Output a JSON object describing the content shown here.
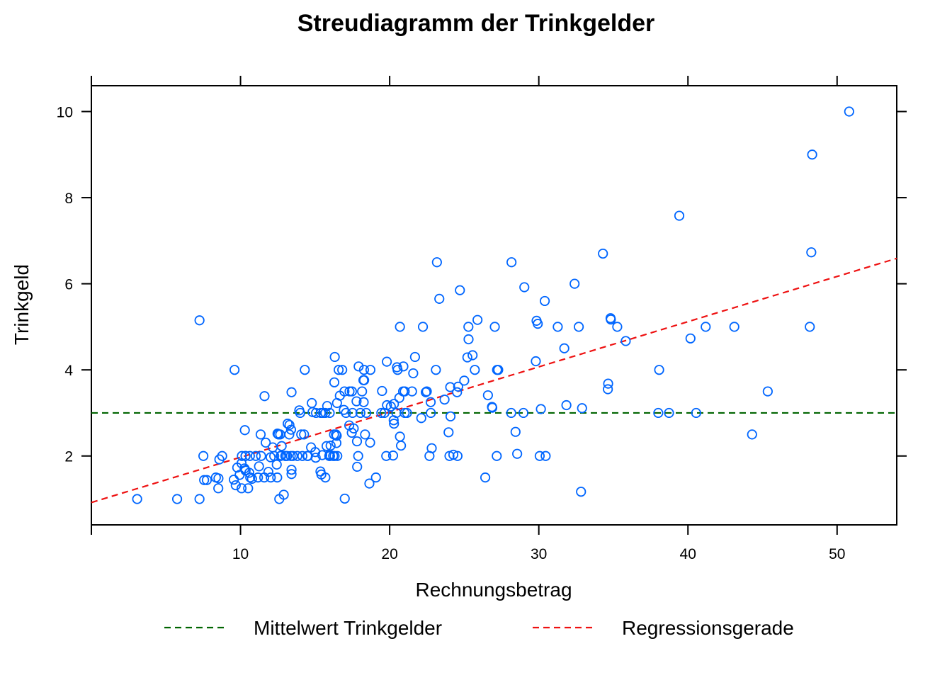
{
  "chart_data": {
    "type": "scatter",
    "title": "Streudiagramm der Trinkgelder",
    "xlabel": "Rechnungsbetrag",
    "ylabel": "Trinkgeld",
    "xlim": [
      0,
      54
    ],
    "ylim": [
      0.4,
      10.6
    ],
    "xticks": [
      10,
      20,
      30,
      40,
      50
    ],
    "yticks": [
      2,
      4,
      6,
      8,
      10
    ],
    "grid": false,
    "legend_position": "bottom",
    "point_color": "#0066ff",
    "series": [
      {
        "points": [
          [
            3.07,
            1.0
          ],
          [
            5.75,
            1.0
          ],
          [
            7.25,
            1.0
          ],
          [
            7.25,
            5.15
          ],
          [
            7.51,
            2.0
          ],
          [
            7.56,
            1.44
          ],
          [
            7.74,
            1.44
          ],
          [
            8.35,
            1.5
          ],
          [
            8.51,
            1.25
          ],
          [
            8.52,
            1.48
          ],
          [
            8.58,
            1.92
          ],
          [
            8.77,
            2.0
          ],
          [
            9.55,
            1.45
          ],
          [
            9.6,
            4.0
          ],
          [
            9.68,
            1.32
          ],
          [
            9.78,
            1.73
          ],
          [
            9.94,
            1.56
          ],
          [
            10.07,
            1.83
          ],
          [
            10.07,
            1.25
          ],
          [
            10.09,
            2.0
          ],
          [
            10.27,
            1.71
          ],
          [
            10.29,
            2.6
          ],
          [
            10.33,
            2.0
          ],
          [
            10.33,
            1.67
          ],
          [
            10.34,
            1.66
          ],
          [
            10.34,
            2.0
          ],
          [
            10.51,
            1.25
          ],
          [
            10.59,
            1.61
          ],
          [
            10.63,
            2.0
          ],
          [
            10.65,
            1.5
          ],
          [
            10.77,
            1.47
          ],
          [
            11.02,
            2.0
          ],
          [
            11.17,
            1.5
          ],
          [
            11.24,
            1.76
          ],
          [
            11.35,
            2.5
          ],
          [
            11.38,
            2.0
          ],
          [
            11.59,
            1.5
          ],
          [
            11.61,
            3.39
          ],
          [
            11.69,
            2.31
          ],
          [
            11.87,
            1.63
          ],
          [
            12.02,
            1.97
          ],
          [
            12.03,
            1.5
          ],
          [
            12.16,
            2.2
          ],
          [
            12.26,
            2.0
          ],
          [
            12.43,
            1.8
          ],
          [
            12.46,
            1.5
          ],
          [
            12.48,
            2.52
          ],
          [
            12.54,
            2.5
          ],
          [
            12.6,
            1.0
          ],
          [
            12.66,
            2.5
          ],
          [
            12.69,
            2.0
          ],
          [
            12.74,
            2.01
          ],
          [
            12.76,
            2.23
          ],
          [
            12.9,
            1.1
          ],
          [
            13.0,
            2.0
          ],
          [
            13.03,
            2.0
          ],
          [
            13.13,
            2.0
          ],
          [
            13.16,
            2.75
          ],
          [
            13.27,
            2.5
          ],
          [
            13.28,
            2.72
          ],
          [
            13.37,
            2.0
          ],
          [
            13.39,
            2.61
          ],
          [
            13.42,
            3.48
          ],
          [
            13.42,
            1.58
          ],
          [
            13.42,
            1.68
          ],
          [
            13.51,
            2.0
          ],
          [
            13.81,
            2.0
          ],
          [
            13.94,
            3.06
          ],
          [
            14.0,
            3.0
          ],
          [
            14.07,
            2.5
          ],
          [
            14.15,
            2.0
          ],
          [
            14.26,
            2.5
          ],
          [
            14.31,
            4.0
          ],
          [
            14.48,
            2.0
          ],
          [
            14.52,
            2.0
          ],
          [
            14.73,
            2.2
          ],
          [
            14.78,
            3.23
          ],
          [
            14.83,
            3.02
          ],
          [
            15.01,
            2.09
          ],
          [
            15.04,
            1.96
          ],
          [
            15.06,
            3.0
          ],
          [
            15.36,
            1.64
          ],
          [
            15.38,
            3.0
          ],
          [
            15.42,
            1.57
          ],
          [
            15.48,
            2.02
          ],
          [
            15.53,
            3.0
          ],
          [
            15.69,
            1.5
          ],
          [
            15.69,
            3.0
          ],
          [
            15.77,
            2.23
          ],
          [
            15.81,
            3.16
          ],
          [
            15.95,
            2.0
          ],
          [
            15.98,
            2.03
          ],
          [
            15.98,
            3.0
          ],
          [
            16.0,
            2.0
          ],
          [
            16.04,
            2.24
          ],
          [
            16.21,
            2.0
          ],
          [
            16.27,
            2.5
          ],
          [
            16.29,
            3.71
          ],
          [
            16.31,
            2.0
          ],
          [
            16.32,
            4.3
          ],
          [
            16.4,
            2.5
          ],
          [
            16.43,
            2.3
          ],
          [
            16.45,
            2.47
          ],
          [
            16.47,
            3.23
          ],
          [
            16.49,
            2.0
          ],
          [
            16.58,
            4.0
          ],
          [
            16.66,
            3.4
          ],
          [
            16.82,
            4.0
          ],
          [
            16.93,
            3.07
          ],
          [
            16.97,
            3.5
          ],
          [
            16.99,
            1.01
          ],
          [
            17.07,
            3.0
          ],
          [
            17.29,
            2.71
          ],
          [
            17.31,
            3.5
          ],
          [
            17.46,
            2.54
          ],
          [
            17.47,
            3.5
          ],
          [
            17.51,
            3.0
          ],
          [
            17.59,
            2.64
          ],
          [
            17.78,
            3.27
          ],
          [
            17.81,
            2.34
          ],
          [
            17.82,
            1.75
          ],
          [
            17.89,
            2.0
          ],
          [
            17.92,
            4.08
          ],
          [
            18.04,
            3.0
          ],
          [
            18.15,
            3.5
          ],
          [
            18.24,
            3.76
          ],
          [
            18.26,
            3.25
          ],
          [
            18.28,
            4.0
          ],
          [
            18.29,
            3.76
          ],
          [
            18.35,
            2.5
          ],
          [
            18.43,
            3.0
          ],
          [
            18.64,
            1.36
          ],
          [
            18.69,
            2.31
          ],
          [
            18.71,
            4.0
          ],
          [
            19.08,
            1.5
          ],
          [
            19.44,
            3.0
          ],
          [
            19.49,
            3.51
          ],
          [
            19.65,
            3.0
          ],
          [
            19.77,
            2.0
          ],
          [
            19.81,
            4.19
          ],
          [
            19.82,
            3.18
          ],
          [
            20.08,
            3.15
          ],
          [
            20.23,
            2.01
          ],
          [
            20.27,
            2.83
          ],
          [
            20.29,
            3.21
          ],
          [
            20.29,
            2.75
          ],
          [
            20.45,
            3.0
          ],
          [
            20.49,
            4.06
          ],
          [
            20.53,
            4.0
          ],
          [
            20.65,
            3.35
          ],
          [
            20.69,
            2.45
          ],
          [
            20.69,
            5.0
          ],
          [
            20.76,
            2.24
          ],
          [
            20.9,
            3.5
          ],
          [
            20.92,
            4.08
          ],
          [
            21.01,
            3.5
          ],
          [
            21.01,
            3.0
          ],
          [
            21.16,
            3.0
          ],
          [
            21.5,
            3.5
          ],
          [
            21.58,
            3.92
          ],
          [
            21.7,
            4.3
          ],
          [
            22.12,
            2.88
          ],
          [
            22.23,
            5.0
          ],
          [
            22.42,
            3.48
          ],
          [
            22.49,
            3.5
          ],
          [
            22.67,
            2.0
          ],
          [
            22.75,
            3.25
          ],
          [
            22.76,
            3.0
          ],
          [
            22.82,
            2.18
          ],
          [
            23.1,
            4.0
          ],
          [
            23.17,
            6.5
          ],
          [
            23.33,
            5.65
          ],
          [
            23.68,
            3.31
          ],
          [
            23.95,
            2.55
          ],
          [
            24.01,
            2.0
          ],
          [
            24.06,
            3.6
          ],
          [
            24.08,
            2.92
          ],
          [
            24.27,
            2.03
          ],
          [
            24.52,
            3.48
          ],
          [
            24.55,
            2.0
          ],
          [
            24.59,
            3.61
          ],
          [
            24.71,
            5.85
          ],
          [
            25.0,
            3.75
          ],
          [
            25.21,
            4.29
          ],
          [
            25.28,
            5.0
          ],
          [
            25.29,
            4.71
          ],
          [
            25.56,
            4.34
          ],
          [
            25.71,
            4.0
          ],
          [
            25.89,
            5.16
          ],
          [
            26.41,
            1.5
          ],
          [
            26.59,
            3.41
          ],
          [
            26.86,
            3.14
          ],
          [
            26.88,
            3.12
          ],
          [
            27.05,
            5.0
          ],
          [
            27.18,
            2.0
          ],
          [
            27.2,
            4.0
          ],
          [
            27.28,
            4.0
          ],
          [
            28.15,
            3.0
          ],
          [
            28.17,
            6.5
          ],
          [
            28.44,
            2.56
          ],
          [
            28.55,
            2.05
          ],
          [
            28.97,
            3.0
          ],
          [
            29.03,
            5.92
          ],
          [
            29.8,
            4.2
          ],
          [
            29.85,
            5.14
          ],
          [
            29.93,
            5.07
          ],
          [
            30.06,
            2.0
          ],
          [
            30.14,
            3.09
          ],
          [
            30.4,
            5.6
          ],
          [
            30.46,
            2.0
          ],
          [
            31.27,
            5.0
          ],
          [
            31.71,
            4.5
          ],
          [
            31.85,
            3.18
          ],
          [
            32.4,
            6.0
          ],
          [
            32.68,
            5.0
          ],
          [
            32.83,
            1.17
          ],
          [
            32.9,
            3.11
          ],
          [
            34.3,
            6.7
          ],
          [
            34.63,
            3.55
          ],
          [
            34.65,
            3.68
          ],
          [
            34.81,
            5.2
          ],
          [
            34.83,
            5.17
          ],
          [
            35.26,
            5.0
          ],
          [
            35.83,
            4.67
          ],
          [
            38.07,
            4.0
          ],
          [
            38.01,
            3.0
          ],
          [
            38.73,
            3.0
          ],
          [
            39.42,
            7.58
          ],
          [
            40.17,
            4.73
          ],
          [
            40.55,
            3.0
          ],
          [
            41.19,
            5.0
          ],
          [
            43.11,
            5.0
          ],
          [
            44.3,
            2.5
          ],
          [
            45.35,
            3.5
          ],
          [
            48.17,
            5.0
          ],
          [
            48.27,
            6.73
          ],
          [
            48.33,
            9.0
          ],
          [
            50.81,
            10.0
          ]
        ]
      }
    ],
    "reference_lines": [
      {
        "name": "Mittelwert Trinkgelder",
        "kind": "horizontal",
        "y": 3.0,
        "color": "#006400",
        "style": "dashed"
      },
      {
        "name": "Regressionsgerade",
        "kind": "linear",
        "intercept": 0.92,
        "slope": 0.105,
        "color": "#ee1111",
        "style": "dashed"
      }
    ]
  }
}
